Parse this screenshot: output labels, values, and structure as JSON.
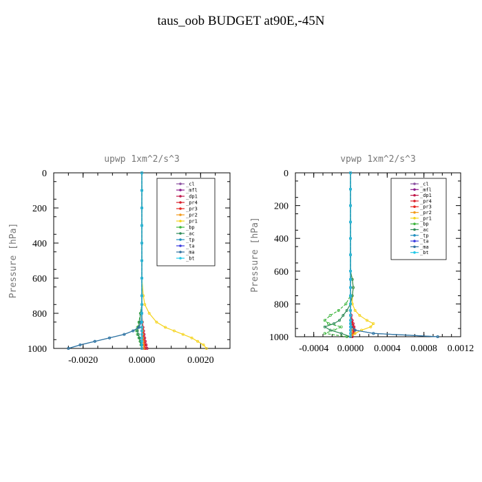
{
  "title": "taus_oob  BUDGET at90E,-45N",
  "legend_labels": [
    "_cl",
    "_mfl",
    "_dp1",
    "_pr4",
    "_pr3",
    "_pr2",
    "_pr1",
    "_bp",
    "_ac",
    "_tp",
    "_ta",
    "_ma",
    "_bt"
  ],
  "legend_colors": [
    "#8a4fa0",
    "#8b1a8b",
    "#c0174a",
    "#d91e2a",
    "#e6231e",
    "#f29a1a",
    "#f5d31a",
    "#3cb43c",
    "#2e8b57",
    "#1f8fbf",
    "#3a3adf",
    "#2f6f9f",
    "#20c8e8"
  ],
  "chart_data": [
    {
      "type": "line",
      "title": "upwp   1xm^2/s^3",
      "ylabel": "Pressure  [hPa]",
      "xlabel": "",
      "xlim": [
        -0.003,
        0.003
      ],
      "ylim": [
        1000,
        0
      ],
      "xticks": [
        -0.002,
        0.0,
        0.002
      ],
      "xtick_labels": [
        "-0.0020",
        "0.0000",
        "0.0020"
      ],
      "yticks": [
        0,
        200,
        400,
        600,
        800,
        1000
      ],
      "ytick_labels": [
        "0",
        "200",
        "400",
        "600",
        "800",
        "1000"
      ],
      "y": [
        0,
        100,
        200,
        300,
        400,
        500,
        600,
        700,
        750,
        800,
        850,
        880,
        900,
        920,
        940,
        960,
        980,
        1000
      ],
      "series": [
        {
          "name": "_cl",
          "values": [
            0,
            0,
            0,
            0,
            0,
            0,
            0,
            0,
            0,
            0,
            0,
            0,
            0,
            0,
            0,
            0,
            0,
            0
          ]
        },
        {
          "name": "_mfl",
          "values": [
            0,
            0,
            0,
            0,
            0,
            0,
            0,
            0,
            0,
            0,
            0,
            0,
            0,
            0,
            0,
            0,
            0,
            0
          ]
        },
        {
          "name": "_dp1",
          "values": [
            0,
            0,
            0,
            0,
            0,
            0,
            0,
            0,
            0,
            0,
            2e-05,
            4e-05,
            6e-05,
            8e-05,
            0.0001,
            0.00012,
            0.00015,
            0.00018
          ]
        },
        {
          "name": "_pr4",
          "values": [
            0,
            0,
            0,
            0,
            0,
            0,
            0,
            0,
            0,
            0,
            1e-05,
            2e-05,
            3e-05,
            5e-05,
            6e-05,
            8e-05,
            0.0001,
            0.00012
          ]
        },
        {
          "name": "_pr3",
          "values": [
            0,
            0,
            0,
            0,
            0,
            0,
            0,
            0,
            0,
            0,
            1e-05,
            2e-05,
            3e-05,
            4e-05,
            5e-05,
            7e-05,
            9e-05,
            0.0001
          ]
        },
        {
          "name": "_pr2",
          "values": [
            0,
            0,
            0,
            0,
            0,
            0,
            0,
            0,
            0,
            0,
            1e-05,
            1e-05,
            2e-05,
            2e-05,
            3e-05,
            4e-05,
            5e-05,
            6e-05
          ]
        },
        {
          "name": "_pr1",
          "values": [
            0,
            0,
            0,
            0,
            0,
            0,
            0,
            5e-05,
            0.0001,
            0.00025,
            0.0005,
            0.0008,
            0.0011,
            0.0014,
            0.0017,
            0.0019,
            0.0021,
            0.0022
          ]
        },
        {
          "name": "_bp",
          "values": [
            0,
            0,
            0,
            0,
            0,
            0,
            0,
            0,
            0,
            -5e-05,
            -0.0001,
            -0.00015,
            -0.00018,
            -0.00015,
            -0.0001,
            -6e-05,
            -3e-05,
            0
          ]
        },
        {
          "name": "_ac",
          "values": [
            0,
            0,
            0,
            0,
            0,
            0,
            0,
            0,
            0,
            -4e-05,
            -8e-05,
            -0.00012,
            -0.00015,
            -0.00012,
            -8e-05,
            -4e-05,
            -2e-05,
            0
          ]
        },
        {
          "name": "_tp",
          "values": [
            0,
            0,
            0,
            0,
            0,
            0,
            0,
            0,
            0,
            0,
            -2e-05,
            -0.0001,
            -0.0003,
            -0.0006,
            -0.0011,
            -0.0016,
            -0.0021,
            -0.0025
          ]
        },
        {
          "name": "_ta",
          "values": [
            0,
            0,
            0,
            0,
            0,
            0,
            0,
            0,
            0,
            0,
            0,
            0,
            0,
            0,
            0,
            0,
            0,
            0
          ]
        },
        {
          "name": "_ma",
          "values": [
            0,
            0,
            0,
            0,
            0,
            0,
            0,
            0,
            0,
            0,
            -2e-05,
            -0.0001,
            -0.0003,
            -0.0006,
            -0.0011,
            -0.0016,
            -0.0021,
            -0.0025
          ]
        },
        {
          "name": "_bt",
          "values": [
            0,
            0,
            0,
            0,
            0,
            0,
            0,
            0,
            0,
            0,
            0,
            0,
            0,
            0,
            0,
            0,
            0,
            0
          ]
        }
      ],
      "legend": "top-right",
      "grid": false
    },
    {
      "type": "line",
      "title": "vpwp   1xm^2/s^3",
      "ylabel": "Pressure  [hPa]",
      "xlabel": "",
      "xlim": [
        -0.0006,
        0.0012
      ],
      "ylim": [
        1000,
        0
      ],
      "xticks": [
        -0.0004,
        0.0,
        0.0004,
        0.0008,
        0.0012
      ],
      "xtick_labels": [
        "-0.0004",
        "0.0000",
        "0.0004",
        "0.0008",
        "0.0012"
      ],
      "yticks": [
        0,
        200,
        400,
        600,
        800,
        1000
      ],
      "ytick_labels": [
        "0",
        "200",
        "400",
        "600",
        "800",
        "1000"
      ],
      "y": [
        0,
        100,
        200,
        300,
        400,
        500,
        600,
        650,
        700,
        750,
        800,
        840,
        870,
        900,
        920,
        940,
        960,
        980,
        1000
      ],
      "series": [
        {
          "name": "_cl",
          "values": [
            0,
            0,
            0,
            0,
            0,
            0,
            0,
            0,
            0,
            0,
            0,
            0,
            0,
            0,
            0,
            0,
            0,
            0,
            0
          ]
        },
        {
          "name": "_mfl",
          "values": [
            0,
            0,
            0,
            0,
            0,
            0,
            0,
            0,
            0,
            0,
            0,
            0,
            0,
            0,
            0,
            0,
            0,
            0,
            0
          ]
        },
        {
          "name": "_dp1",
          "values": [
            0,
            0,
            0,
            0,
            0,
            0,
            0,
            0,
            0,
            0,
            0,
            0,
            1e-05,
            2e-05,
            3e-05,
            4e-05,
            5e-05,
            4e-05,
            2e-05
          ]
        },
        {
          "name": "_pr4",
          "values": [
            0,
            0,
            0,
            0,
            0,
            0,
            0,
            0,
            0,
            0,
            0,
            0,
            0,
            1e-05,
            2e-05,
            3e-05,
            4e-05,
            3e-05,
            1e-05
          ]
        },
        {
          "name": "_pr3",
          "values": [
            0,
            0,
            0,
            0,
            0,
            0,
            0,
            0,
            0,
            0,
            0,
            0,
            0,
            0,
            1e-05,
            2e-05,
            3e-05,
            2e-05,
            1e-05
          ]
        },
        {
          "name": "_pr2",
          "values": [
            0,
            0,
            0,
            0,
            0,
            0,
            0,
            0,
            0,
            0,
            0,
            0,
            0,
            0,
            0,
            1e-05,
            1e-05,
            1e-05,
            0
          ]
        },
        {
          "name": "_pr1",
          "values": [
            0,
            0,
            0,
            0,
            0,
            0,
            0,
            2e-05,
            3e-05,
            2e-05,
            2e-05,
            5e-05,
            0.0001,
            0.00018,
            0.00025,
            0.00022,
            0.00012,
            5e-05,
            0
          ]
        },
        {
          "name": "_bp",
          "values": [
            0,
            0,
            0,
            0,
            0,
            0,
            0,
            0,
            0,
            0,
            -5e-05,
            -0.00013,
            -0.00022,
            -0.00028,
            -0.00024,
            -0.0001,
            -0.00018,
            -0.00028,
            -4e-05
          ]
        },
        {
          "name": "_ac",
          "values": [
            0,
            0,
            0,
            0,
            0,
            0,
            0,
            2e-05,
            3e-05,
            2e-05,
            0,
            -4e-05,
            -8e-05,
            -0.00012,
            -0.00018,
            -0.00028,
            -0.00022,
            -0.0001,
            0
          ]
        },
        {
          "name": "_tp",
          "values": [
            0,
            0,
            0,
            0,
            0,
            0,
            0,
            0,
            0,
            0,
            0,
            0,
            0,
            0,
            0,
            1e-05,
            5e-05,
            0.00025,
            0.00095
          ]
        },
        {
          "name": "_ta",
          "values": [
            0,
            0,
            0,
            0,
            0,
            0,
            0,
            0,
            0,
            0,
            0,
            0,
            0,
            0,
            0,
            0,
            0,
            0,
            0
          ]
        },
        {
          "name": "_ma",
          "values": [
            0,
            0,
            0,
            0,
            0,
            0,
            0,
            0,
            0,
            0,
            0,
            0,
            0,
            0,
            0,
            1e-05,
            5e-05,
            0.00025,
            0.00095
          ]
        },
        {
          "name": "_bt",
          "values": [
            0,
            0,
            0,
            0,
            0,
            0,
            0,
            0,
            0,
            0,
            0,
            0,
            0,
            0,
            0,
            0,
            0,
            0,
            0
          ]
        }
      ],
      "legend": "top-right",
      "grid": false
    }
  ]
}
